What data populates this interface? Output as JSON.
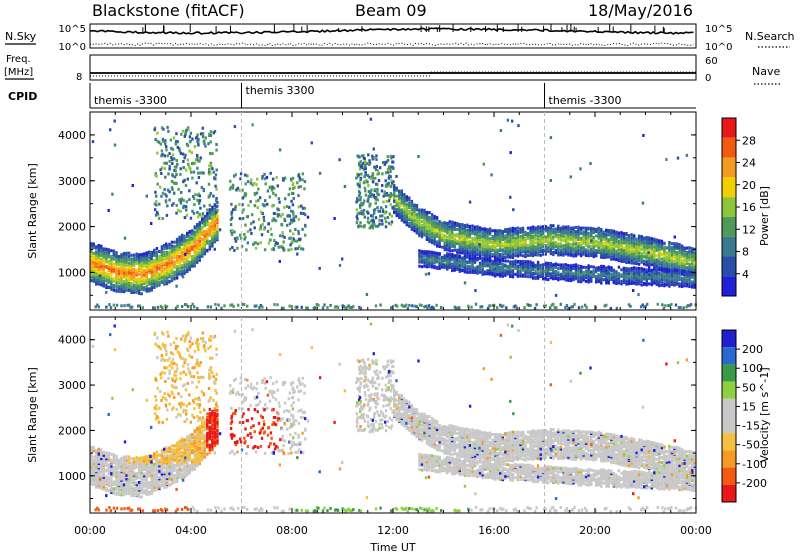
{
  "header": {
    "radar": "Blackstone (fitACF)",
    "beam": "Beam 09",
    "date": "18/May/2016"
  },
  "top_panels": {
    "nsky_label": "N.Sky",
    "nsearch_label": "N.Search",
    "nsky_ticks": [
      "10^5",
      "10^0"
    ],
    "nsearch_ticks": [
      "10^5",
      "10^0"
    ],
    "freq_label_line1": "Freq.",
    "freq_label_line2": "[MHz]",
    "freq_tick": "8",
    "nave_label": "Nave",
    "nave_ticks": [
      "60",
      "0"
    ],
    "cpid_label": "CPID",
    "cpid_segments": [
      {
        "name": "themis -3300",
        "start_hour": 0
      },
      {
        "name": "themis 3300",
        "start_hour": 6
      },
      {
        "name": "themis -3300",
        "start_hour": 18
      }
    ]
  },
  "colors": {
    "power_scale": [
      "#2020d8",
      "#2a4ea8",
      "#3a7a90",
      "#4e9a58",
      "#8ec63a",
      "#f2d000",
      "#f59a20",
      "#f25a10",
      "#e81818"
    ],
    "velocity_scale": [
      "#e81818",
      "#f55a12",
      "#f79a25",
      "#f4c040",
      "#c8c8c8",
      "#c8c8c8",
      "#8ed040",
      "#3a9a4a",
      "#2a6ad0",
      "#2020d0"
    ]
  },
  "chart_data": [
    {
      "type": "heatmap",
      "name": "Power",
      "ylabel": "Slant Range [km]",
      "colorbar_label": "Power [dB]",
      "colorbar_ticks": [
        "28",
        "24",
        "20",
        "16",
        "12",
        "8",
        "4"
      ],
      "xlim": [
        0,
        24
      ],
      "ylim": [
        180,
        4500
      ],
      "yticks": [
        1000,
        2000,
        3000,
        4000
      ],
      "ytick_labels": [
        "1000",
        "2000",
        "3000",
        "4000"
      ],
      "bands": [
        {
          "range_km": [
            [
              0,
              1250
            ],
            [
              1,
              1050
            ],
            [
              2,
              1000
            ],
            [
              3,
              1200
            ],
            [
              4,
              1550
            ],
            [
              4.5,
              1850
            ],
            [
              5,
              2150
            ]
          ],
          "width_km": 420,
          "core_db": 26
        },
        {
          "range_km": [
            [
              12,
              2650
            ],
            [
              13,
              2150
            ],
            [
              14,
              1850
            ],
            [
              16,
              1650
            ],
            [
              18,
              1750
            ],
            [
              20,
              1700
            ],
            [
              22,
              1500
            ],
            [
              24,
              1250
            ]
          ],
          "width_km": 320,
          "core_db": 18
        },
        {
          "range_km": [
            [
              13,
              1350
            ],
            [
              16,
              1150
            ],
            [
              20,
              1000
            ],
            [
              24,
              900
            ]
          ],
          "width_km": 180,
          "core_db": 10
        }
      ],
      "sporadic_clusters_hours": [
        [
          2.5,
          5.0,
          2200,
          4200
        ],
        [
          5.5,
          8.5,
          1500,
          3200
        ],
        [
          10.5,
          12.0,
          2000,
          3600
        ]
      ]
    },
    {
      "type": "heatmap",
      "name": "Velocity",
      "ylabel": "Slant Range [km]",
      "colorbar_label": "Velocity [m s^-1]",
      "colorbar_ticks": [
        "200",
        "100",
        "50",
        "15",
        "-15",
        "-50",
        "-100",
        "-200"
      ],
      "xlim": [
        0,
        24
      ],
      "ylim": [
        180,
        4500
      ],
      "yticks": [
        1000,
        2000,
        3000,
        4000
      ],
      "ytick_labels": [
        "1000",
        "2000",
        "3000",
        "4000"
      ],
      "xticks_hours": [
        0,
        4,
        8,
        12,
        16,
        20,
        24
      ],
      "xtick_labels": [
        "00:00",
        "04:00",
        "08:00",
        "12:00",
        "16:00",
        "20:00",
        "00:00"
      ],
      "xlabel": "Time UT"
    }
  ]
}
